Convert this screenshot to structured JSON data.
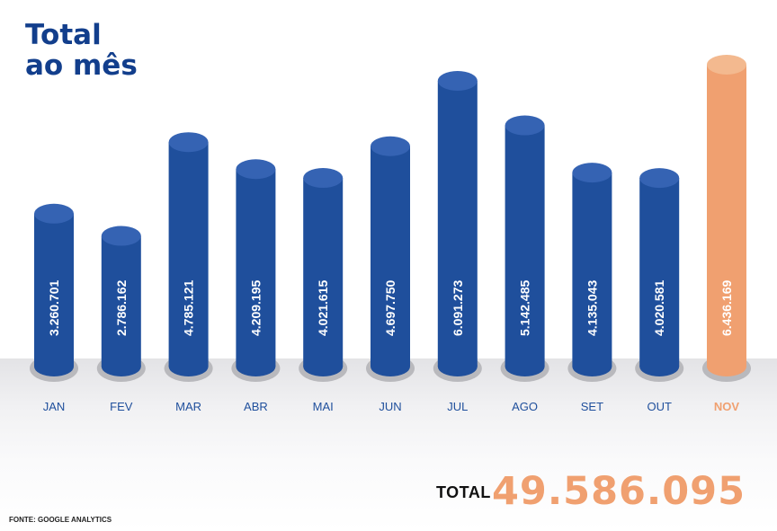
{
  "title_lines": [
    "Total",
    "ao mês"
  ],
  "chart_data": {
    "type": "bar",
    "categories": [
      "JAN",
      "FEV",
      "MAR",
      "ABR",
      "MAI",
      "JUN",
      "JUL",
      "AGO",
      "SET",
      "OUT",
      "NOV"
    ],
    "values": [
      3260701,
      2786162,
      4785121,
      4209195,
      4021615,
      4697750,
      6091273,
      5142485,
      4135043,
      4020581,
      6436169
    ],
    "value_labels": [
      "3.260.701",
      "2.786.162",
      "4.785.121",
      "4.209.195",
      "4.021.615",
      "4.697.750",
      "6.091.273",
      "5.142.485",
      "4.135.043",
      "4.020.581",
      "6.436.169"
    ],
    "highlight_category": "NOV",
    "colors": {
      "bar": "#1f4f9c",
      "bar_top": "#3563b3",
      "highlight": "#f0a070",
      "highlight_top": "#f3b98f",
      "label_default": "#1f4f9c",
      "label_highlight": "#f0a070"
    },
    "ylim": [
      0,
      6436169
    ],
    "grid": false
  },
  "total": {
    "label": "TOTAL",
    "value": "49.586.095"
  },
  "source": "FONTE: GOOGLE ANALYTICS"
}
